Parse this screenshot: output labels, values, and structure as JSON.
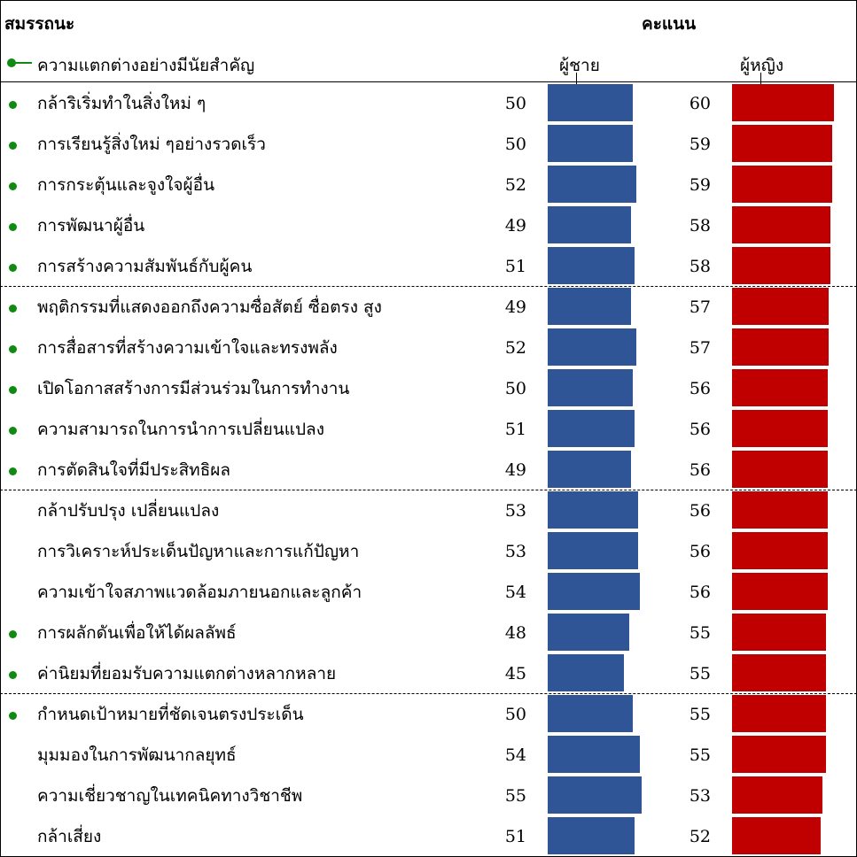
{
  "header": {
    "title": "สมรรถนะ",
    "score_label": "คะแนน",
    "legend_label": "ความแตกต่างอย่างมีนัยสำคัญ"
  },
  "colors": {
    "male": "#2f5597",
    "female": "#c00000",
    "significance_marker": "#108a10"
  },
  "chart_data": {
    "type": "bar",
    "title": "",
    "series": [
      {
        "name": "ผู้ชาย",
        "values": [
          50,
          50,
          52,
          49,
          51,
          49,
          52,
          50,
          51,
          49,
          53,
          53,
          54,
          48,
          45,
          50,
          54,
          55,
          51
        ]
      },
      {
        "name": "ผู้หญิง",
        "values": [
          60,
          59,
          59,
          58,
          58,
          57,
          57,
          56,
          56,
          56,
          56,
          56,
          56,
          55,
          55,
          55,
          55,
          53,
          52
        ]
      }
    ],
    "categories": [
      "กล้าริเริ่มทำในสิ่งใหม่ ๆ",
      "การเรียนรู้สิ่งใหม่ ๆอย่างรวดเร็ว",
      "การกระตุ้นและจูงใจผู้อื่น",
      "การพัฒนาผู้อื่น",
      "การสร้างความสัมพันธ์กับผู้คน",
      "พฤติกรรมที่แสดงออกถึงความซื่อสัตย์ ซื่อตรง สูง",
      "การสื่อสารที่สร้างความเข้าใจและทรงพลัง",
      "เปิดโอกาสสร้างการมีส่วนร่วมในการทำงาน",
      "ความสามารถในการนำการเปลี่ยนแปลง",
      "การตัดสินใจที่มีประสิทธิผล",
      "กล้าปรับปรุง เปลี่ยนแปลง",
      "การวิเคราะห์ประเด็นปัญหาและการแก้ปัญหา",
      "ความเข้าใจสภาพแวดล้อมภายนอกและลูกค้า",
      "การผลักดันเพื่อให้ได้ผลลัพธ์",
      "ค่านิยมที่ยอมรับความแตกต่างหลากหลาย",
      "กำหนดเป้าหมายที่ชัดเจนตรงประเด็น",
      "มุมมองในการพัฒนากลยุทธ์",
      "ความเชี่ยวชาญในเทคนิคทางวิชาชีพ",
      "กล้าเสี่ยง"
    ],
    "significant": [
      true,
      true,
      true,
      true,
      true,
      true,
      true,
      true,
      true,
      true,
      false,
      false,
      false,
      true,
      true,
      true,
      false,
      false,
      false
    ],
    "group_breaks_after": [
      4,
      9,
      14
    ]
  }
}
